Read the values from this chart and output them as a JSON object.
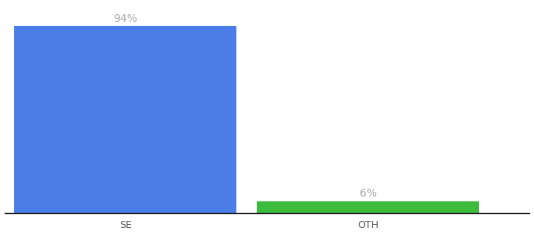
{
  "categories": [
    "SE",
    "OTH"
  ],
  "values": [
    94,
    6
  ],
  "bar_colors": [
    "#4a7de8",
    "#3dbb3d"
  ],
  "label_texts": [
    "94%",
    "6%"
  ],
  "ylim": [
    0,
    105
  ],
  "background_color": "#ffffff",
  "label_color": "#aaaaaa",
  "label_fontsize": 10,
  "tick_fontsize": 9,
  "tick_color": "#555555",
  "bar_width": 0.55,
  "x_positions": [
    0.3,
    0.9
  ],
  "xlim": [
    0.0,
    1.3
  ]
}
